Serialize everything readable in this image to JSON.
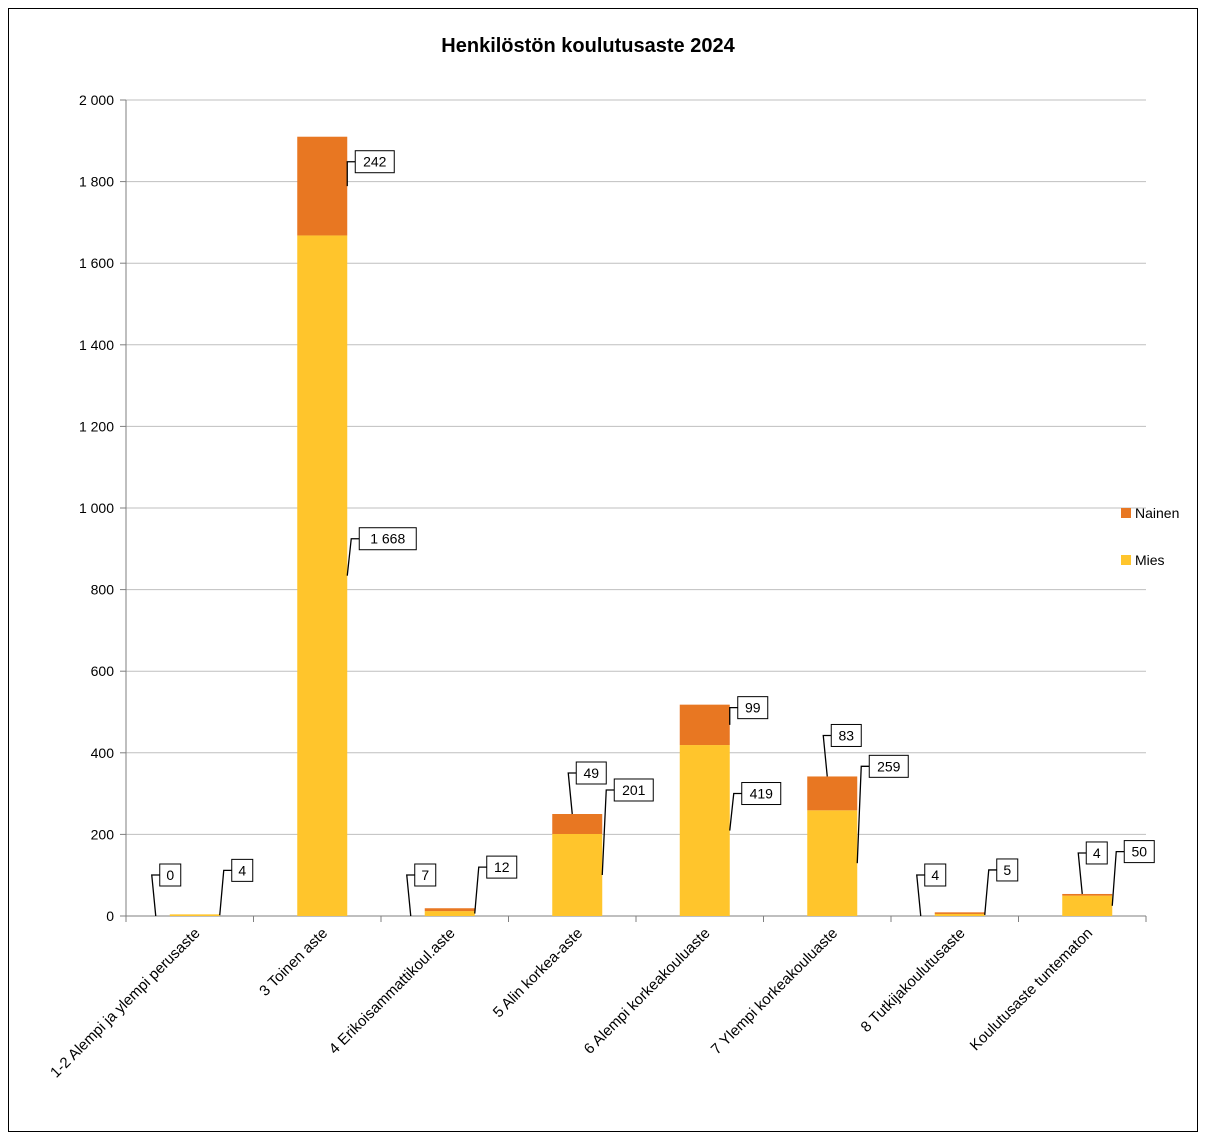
{
  "chart_data": {
    "type": "bar",
    "stacked": true,
    "title": "Henkilöstön koulutusaste 2024",
    "xlabel": "",
    "ylabel": "",
    "ylim": [
      0,
      2000
    ],
    "yticks": [
      "0",
      "200",
      "400",
      "600",
      "800",
      "1 000",
      "1 200",
      "1 400",
      "1 600",
      "1 800",
      "2 000"
    ],
    "grid": true,
    "legend_position": "right",
    "categories": [
      "1-2 Alempi ja ylempi perusaste",
      "3 Toinen aste",
      "4 Erikoisammattikoul.aste",
      "5 Alin korkea-aste",
      "6 Alempi korkeakouluaste",
      "7 Ylempi korkeakouluaste",
      "8 Tutkijakoulutusaste",
      "Koulutusaste tuntematon"
    ],
    "series": [
      {
        "name": "Mies",
        "color": "#FFC52C",
        "values": [
          4,
          1668,
          12,
          201,
          419,
          259,
          5,
          50
        ],
        "labels": [
          "4",
          "1 668",
          "12",
          "201",
          "419",
          "259",
          "5",
          "50"
        ]
      },
      {
        "name": "Nainen",
        "color": "#E87722",
        "values": [
          0,
          242,
          7,
          49,
          99,
          83,
          4,
          4
        ],
        "labels": [
          "0",
          "242",
          "7",
          "49",
          "99",
          "83",
          "4",
          "4"
        ]
      }
    ]
  }
}
